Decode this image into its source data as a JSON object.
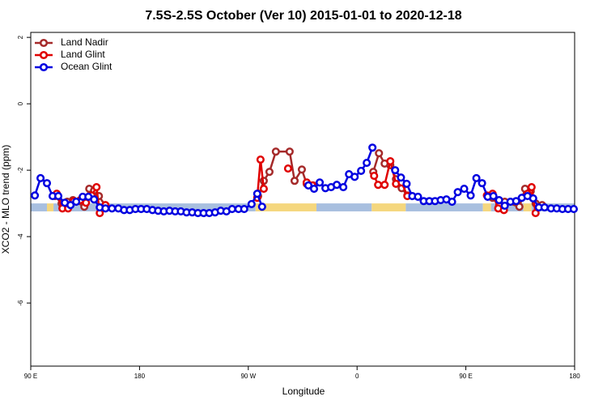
{
  "chart_data": {
    "type": "line",
    "title": "7.5S-2.5S October (Ver 10)   2015-01-01 to 2020-12-18",
    "x_label": "Longitude",
    "y_label": "XCO2 - MLO trend (ppm)",
    "xlim": [
      90,
      540
    ],
    "ylim": [
      -7.9,
      2.15
    ],
    "xticks": [
      {
        "value": 90,
        "label": "90 E"
      },
      180,
      {
        "value": 270,
        "label": "90 W"
      },
      {
        "value": 360,
        "label": "0"
      },
      {
        "value": 450,
        "label": "90 E"
      },
      {
        "value": 540,
        "label": "180"
      }
    ],
    "yticks": [
      2,
      0,
      -2,
      -4,
      -6
    ],
    "legend": "top-left",
    "band": {
      "y": [
        -3.24,
        -3.0
      ],
      "segments": [
        {
          "start": 90,
          "end": 103.4,
          "color": "#a8bfdf"
        },
        {
          "start": 103.4,
          "end": 108.8,
          "color": "#f5d77e"
        },
        {
          "start": 108.8,
          "end": 276,
          "color": "#a8bfdf"
        },
        {
          "start": 276,
          "end": 326.4,
          "color": "#f5d77e"
        },
        {
          "start": 326.4,
          "end": 372.1,
          "color": "#a8bfdf"
        },
        {
          "start": 372.1,
          "end": 400.3,
          "color": "#f5d77e"
        },
        {
          "start": 400.3,
          "end": 464.1,
          "color": "#a8bfdf"
        },
        {
          "start": 464.1,
          "end": 470.8,
          "color": "#f5d77e"
        },
        {
          "start": 470.8,
          "end": 497.7,
          "color": "#a8bfdf"
        },
        {
          "start": 497.7,
          "end": 504.4,
          "color": "#f5d77e"
        },
        {
          "start": 504.4,
          "end": 540,
          "color": "#a8bfdf"
        }
      ]
    },
    "series": [
      {
        "name": "Land Nadir",
        "color": "#a52a2a",
        "x": [
          110.1,
          115.5,
          120.2,
          124.9,
          134.3,
          138.4,
          142.4,
          146.4,
          151.8,
          null,
          278.1,
          282.8,
          287.5,
          292.8,
          304.2,
          308.3,
          314.3,
          318.3,
          323.7,
          null,
          373.4,
          378.1,
          382.8,
          387.5,
          392.2,
          396.9,
          401.6,
          null,
          472.1,
          477.5,
          482.2,
          494.3,
          499.0,
          503.7,
          507.7,
          513.1
        ],
        "values": [
          -2.78,
          -3.0,
          -2.95,
          -2.9,
          -3.1,
          -2.56,
          -2.61,
          -2.78,
          -3.07,
          null,
          -2.78,
          -2.32,
          -2.05,
          -1.44,
          -1.44,
          -2.32,
          -1.98,
          -2.41,
          -2.46,
          null,
          -2.05,
          -1.49,
          -1.8,
          -1.85,
          -2.27,
          -2.54,
          -2.76,
          null,
          -2.83,
          -3.07,
          -2.95,
          -3.1,
          -2.56,
          -2.63,
          -3.0,
          -3.05
        ]
      },
      {
        "name": "Land Glint",
        "color": "#e00000",
        "x": [
          111.5,
          116.2,
          120.9,
          125.6,
          131.0,
          135.7,
          140.4,
          144.4,
          147.1,
          151.8,
          null,
          277.4,
          280.1,
          282.8,
          null,
          302.9,
          null,
          318.3,
          323.0,
          null,
          374.1,
          377.4,
          382.8,
          387.5,
          392.2,
          396.9,
          401.6,
          null,
          467.4,
          472.1,
          476.8,
          481.5,
          null,
          501.0,
          504.4,
          507.7
        ],
        "values": [
          -2.71,
          -3.15,
          -3.15,
          -2.93,
          -2.9,
          -2.98,
          -2.76,
          -2.51,
          -3.29,
          -3.05,
          null,
          -2.83,
          -1.68,
          -2.56,
          null,
          -1.95,
          null,
          -2.37,
          -2.46,
          null,
          -2.17,
          -2.44,
          -2.44,
          -1.73,
          -2.41,
          -2.37,
          -2.78,
          null,
          -2.76,
          -2.71,
          -3.15,
          -3.2,
          null,
          -2.71,
          -2.51,
          -3.29
        ]
      },
      {
        "name": "Ocean Glint",
        "color": "#0000e0",
        "x": [
          93.4,
          98.1,
          103.4,
          108.1,
          112.8,
          118.2,
          122.9,
          127.6,
          133.0,
          137.7,
          142.4,
          147.1,
          151.8,
          157.2,
          162.5,
          167.2,
          171.9,
          176.6,
          181.3,
          186.0,
          190.7,
          195.4,
          200.1,
          204.8,
          209.5,
          214.2,
          218.9,
          223.6,
          228.3,
          233.0,
          237.7,
          242.5,
          247.2,
          251.9,
          256.6,
          261.9,
          266.6,
          272.7,
          277.4,
          281.4,
          null,
          319.7,
          324.4,
          329.1,
          333.8,
          338.5,
          343.2,
          348.6,
          353.3,
          358.0,
          363.3,
          368.0,
          372.7,
          null,
          391.5,
          396.3,
          401.0,
          405.7,
          410.4,
          415.1,
          419.8,
          424.5,
          429.2,
          433.9,
          438.6,
          443.3,
          448.6,
          454.0,
          458.7,
          463.4,
          468.1,
          472.8,
          477.5,
          482.2,
          486.9,
          491.6,
          496.3,
          501.0,
          505.7,
          510.4,
          515.1,
          520.5,
          525.2,
          529.9,
          534.6,
          539.3
        ],
        "values": [
          -2.76,
          -2.24,
          -2.39,
          -2.78,
          -2.78,
          -2.98,
          -3.05,
          -2.95,
          -2.8,
          -2.8,
          -2.88,
          -3.12,
          -3.15,
          -3.15,
          -3.15,
          -3.2,
          -3.2,
          -3.17,
          -3.17,
          -3.17,
          -3.2,
          -3.22,
          -3.24,
          -3.22,
          -3.24,
          -3.24,
          -3.27,
          -3.27,
          -3.29,
          -3.29,
          -3.29,
          -3.27,
          -3.22,
          -3.24,
          -3.17,
          -3.17,
          -3.17,
          -3.02,
          -2.71,
          -3.1,
          null,
          -2.46,
          -2.56,
          -2.37,
          -2.54,
          -2.51,
          -2.44,
          -2.51,
          -2.12,
          -2.2,
          -2.02,
          -1.78,
          -1.32,
          null,
          -2.0,
          -2.22,
          -2.41,
          -2.78,
          -2.8,
          -2.93,
          -2.93,
          -2.93,
          -2.9,
          -2.88,
          -2.95,
          -2.66,
          -2.56,
          -2.76,
          -2.24,
          -2.39,
          -2.8,
          -2.78,
          -2.9,
          -3.07,
          -2.95,
          -2.93,
          -2.83,
          -2.78,
          -2.85,
          -3.12,
          -3.12,
          -3.15,
          -3.15,
          -3.17,
          -3.17,
          -3.17
        ]
      }
    ]
  }
}
